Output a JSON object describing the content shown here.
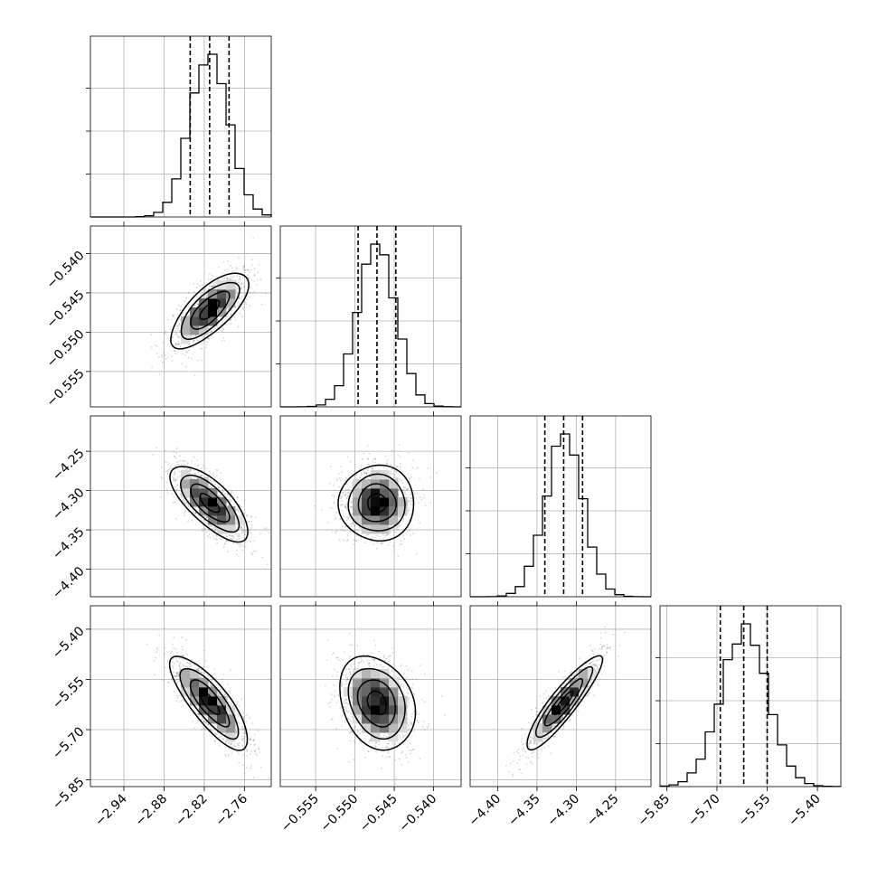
{
  "chart_data": {
    "type": "corner",
    "n_params": 4,
    "grid": true,
    "parameters": [
      {
        "index": 0,
        "median": -2.812,
        "sigma": 0.029,
        "q16": -2.841,
        "q50": -2.812,
        "q84": -2.783,
        "range": [
          -2.99,
          -2.72
        ],
        "ticks": [
          -2.94,
          -2.88,
          -2.82,
          -2.76
        ],
        "tick_labels": [
          "−2.94",
          "−2.88",
          "−2.82",
          "−2.76"
        ]
      },
      {
        "index": 1,
        "median": -0.5472,
        "sigma": 0.0024,
        "q16": -0.5496,
        "q50": -0.5472,
        "q84": -0.5448,
        "range": [
          -0.5595,
          -0.5365
        ],
        "ticks": [
          -0.555,
          -0.55,
          -0.545,
          -0.54
        ],
        "tick_labels": [
          "−0.555",
          "−0.550",
          "−0.545",
          "−0.540"
        ]
      },
      {
        "index": 2,
        "median": -4.316,
        "sigma": 0.024,
        "q16": -4.34,
        "q50": -4.316,
        "q84": -4.292,
        "range": [
          -4.435,
          -4.205
        ],
        "ticks": [
          -4.4,
          -4.35,
          -4.3,
          -4.25
        ],
        "tick_labels": [
          "−4.40",
          "−4.35",
          "−4.30",
          "−4.25"
        ]
      },
      {
        "index": 3,
        "median": -5.62,
        "sigma": 0.07,
        "q16": -5.69,
        "q50": -5.62,
        "q84": -5.55,
        "range": [
          -5.87,
          -5.33
        ],
        "ticks": [
          -5.85,
          -5.7,
          -5.55,
          -5.4
        ],
        "tick_labels": [
          "−5.85",
          "−5.70",
          "−5.55",
          "−5.40"
        ]
      }
    ],
    "correlations": [
      {
        "pair": [
          0,
          1
        ],
        "rho": 0.72
      },
      {
        "pair": [
          0,
          2
        ],
        "rho": -0.72
      },
      {
        "pair": [
          1,
          2
        ],
        "rho": 0.0
      },
      {
        "pair": [
          0,
          3
        ],
        "rho": -0.8
      },
      {
        "pair": [
          1,
          3
        ],
        "rho": -0.25
      },
      {
        "pair": [
          2,
          3
        ],
        "rho": 0.9
      }
    ],
    "contour_sigma_levels": [
      0.5,
      1.0,
      1.5,
      2.0
    ],
    "quantiles": [
      0.16,
      0.5,
      0.84
    ],
    "histogram_bins": 20,
    "colors": {
      "line": "#000000",
      "scatter": "#000000",
      "grid": "#b0b0b0"
    }
  }
}
